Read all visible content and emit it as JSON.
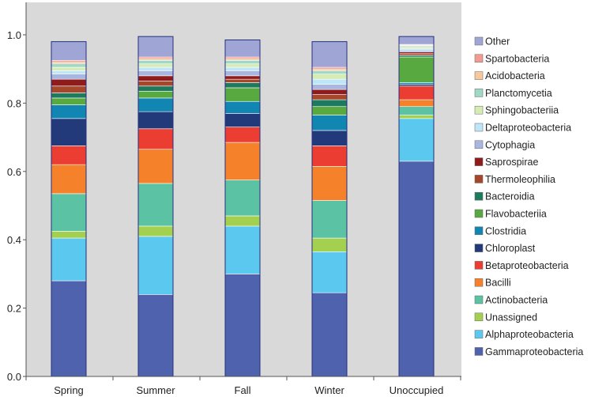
{
  "chart_data": {
    "type": "stacked-bar",
    "title": "",
    "xlabel": "",
    "ylabel": "",
    "ylim": [
      0,
      1
    ],
    "yticks": [
      "0.0",
      "0.2",
      "0.4",
      "0.6",
      "0.8",
      "1.0"
    ],
    "categories": [
      "Spring",
      "Summer",
      "Fall",
      "Winter",
      "Unoccupied"
    ],
    "legend_position": "right",
    "series": [
      {
        "name": "Gammaproteobacteria",
        "color": "#4f62ae",
        "values": [
          0.28,
          0.24,
          0.3,
          0.245,
          0.63
        ]
      },
      {
        "name": "Alphaproteobacteria",
        "color": "#5bc8ef",
        "values": [
          0.125,
          0.17,
          0.14,
          0.12,
          0.125
        ]
      },
      {
        "name": "Unassigned",
        "color": "#a4d04f",
        "values": [
          0.02,
          0.03,
          0.03,
          0.04,
          0.01
        ]
      },
      {
        "name": "Actinobacteria",
        "color": "#5cc2a4",
        "values": [
          0.11,
          0.125,
          0.105,
          0.11,
          0.025
        ]
      },
      {
        "name": "Bacilli",
        "color": "#f5822a",
        "values": [
          0.085,
          0.1,
          0.11,
          0.1,
          0.02
        ]
      },
      {
        "name": "Betaproteobacteria",
        "color": "#ec3d33",
        "values": [
          0.055,
          0.06,
          0.045,
          0.06,
          0.04
        ]
      },
      {
        "name": "Chloroplast",
        "color": "#223a7a",
        "values": [
          0.08,
          0.05,
          0.04,
          0.045,
          0.005
        ]
      },
      {
        "name": "Clostridia",
        "color": "#1286b3",
        "values": [
          0.04,
          0.04,
          0.035,
          0.045,
          0.005
        ]
      },
      {
        "name": "Flavobacteriia",
        "color": "#59a941",
        "values": [
          0.02,
          0.02,
          0.04,
          0.025,
          0.075
        ]
      },
      {
        "name": "Bacteroidia",
        "color": "#1e7a5e",
        "values": [
          0.015,
          0.015,
          0.015,
          0.02,
          0.005
        ]
      },
      {
        "name": "Thermoleophilia",
        "color": "#a6462a",
        "values": [
          0.02,
          0.015,
          0.01,
          0.015,
          0.005
        ]
      },
      {
        "name": "Saprospirae",
        "color": "#8e1c1c",
        "values": [
          0.02,
          0.015,
          0.01,
          0.015,
          0.005
        ]
      },
      {
        "name": "Cytophagia",
        "color": "#a9b7e0",
        "values": [
          0.015,
          0.015,
          0.015,
          0.015,
          0.005
        ]
      },
      {
        "name": "Deltaproteobacteria",
        "color": "#bfe6f8",
        "values": [
          0.01,
          0.01,
          0.01,
          0.015,
          0.005
        ]
      },
      {
        "name": "Sphingobacteriia",
        "color": "#d6ecb4",
        "values": [
          0.01,
          0.01,
          0.01,
          0.015,
          0.005
        ]
      },
      {
        "name": "Planctomycetia",
        "color": "#9fd8c6",
        "values": [
          0.01,
          0.01,
          0.01,
          0.01,
          0.003
        ]
      },
      {
        "name": "Acidobacteria",
        "color": "#f9c79c",
        "values": [
          0.005,
          0.005,
          0.005,
          0.005,
          0.002
        ]
      },
      {
        "name": "Spartobacteria",
        "color": "#f49b91",
        "values": [
          0.005,
          0.005,
          0.005,
          0.005,
          0.002
        ]
      },
      {
        "name": "Other",
        "color": "#9fa5d5",
        "values": [
          0.055,
          0.06,
          0.05,
          0.075,
          0.023
        ]
      }
    ]
  },
  "colors": {
    "plot_background": "#d9d9d9",
    "bar_outline": "#26307a",
    "axis": "#555555"
  }
}
